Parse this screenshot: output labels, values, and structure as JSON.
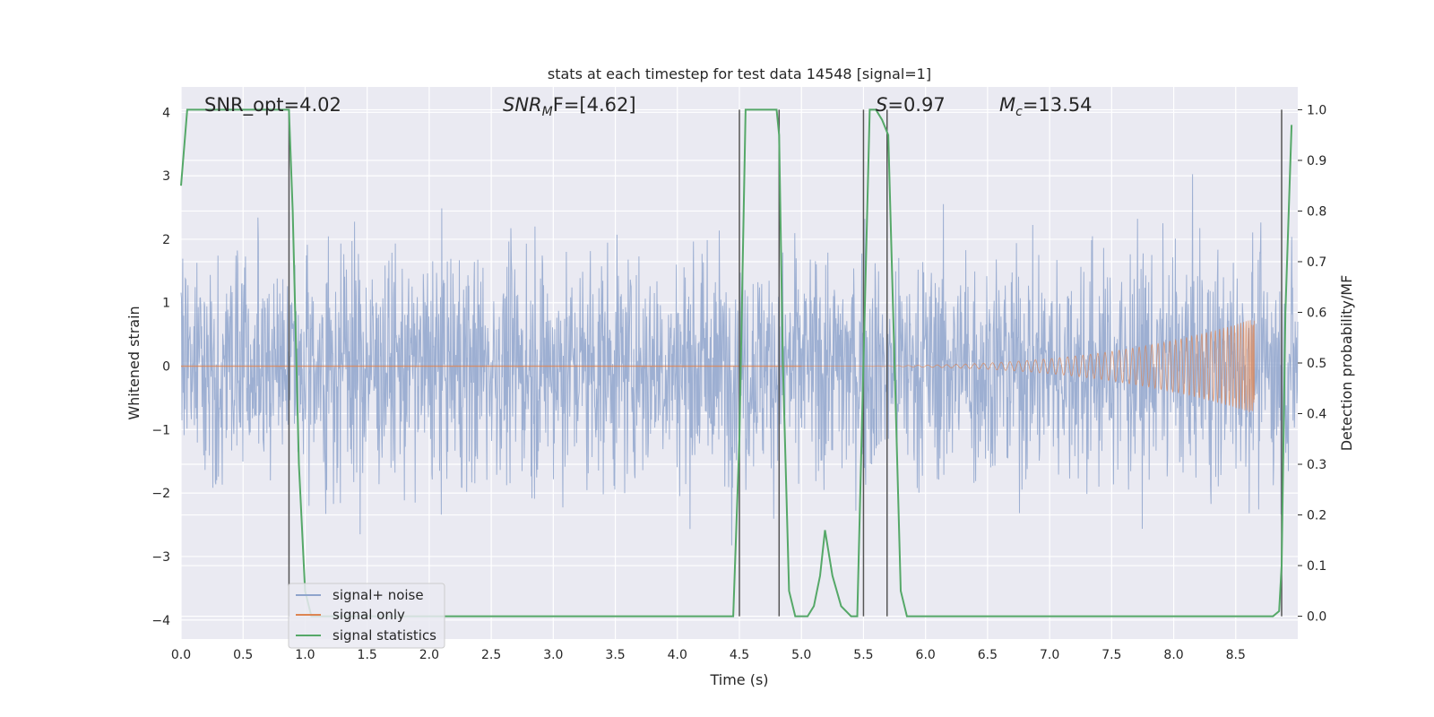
{
  "chart_data": {
    "type": "line",
    "title": "stats at each timestep for test data 14548 [signal=1]",
    "xlabel": "Time (s)",
    "ylabel": "Whitened strain",
    "y2label": "Detection probability/MF",
    "xlim": [
      0.0,
      9.0
    ],
    "ylim": [
      -4.3,
      4.4
    ],
    "y2lim": [
      -0.045,
      1.045
    ],
    "xticks": [
      "0.0",
      "0.5",
      "1.0",
      "1.5",
      "2.0",
      "2.5",
      "3.0",
      "3.5",
      "4.0",
      "4.5",
      "5.0",
      "5.5",
      "6.0",
      "6.5",
      "7.0",
      "7.5",
      "8.0",
      "8.5"
    ],
    "xtick_values": [
      0.0,
      0.5,
      1.0,
      1.5,
      2.0,
      2.5,
      3.0,
      3.5,
      4.0,
      4.5,
      5.0,
      5.5,
      6.0,
      6.5,
      7.0,
      7.5,
      8.0,
      8.5
    ],
    "yticks": [
      "4",
      "3",
      "2",
      "1",
      "0",
      "−1",
      "−2",
      "−3",
      "−4"
    ],
    "ytick_values": [
      4,
      3,
      2,
      1,
      0,
      -1,
      -2,
      -3,
      -4
    ],
    "y2ticks": [
      "1.0",
      "0.9",
      "0.8",
      "0.7",
      "0.6",
      "0.5",
      "0.4",
      "0.3",
      "0.2",
      "0.1",
      "0.0"
    ],
    "y2tick_values": [
      1.0,
      0.9,
      0.8,
      0.7,
      0.6,
      0.5,
      0.4,
      0.3,
      0.2,
      0.1,
      0.0
    ],
    "grid": true,
    "legend_position": "lower-left",
    "annotations": {
      "snr_opt": "SNR_opt=4.02",
      "snr_mf_italic": "SNR",
      "snr_mf_sub": "M",
      "snr_mf_rest": "F=[4.62]",
      "s_italic": "S",
      "s_rest": "=0.97",
      "mc_italic": "M",
      "mc_sub": "c",
      "mc_rest": "=13.54"
    },
    "series": [
      {
        "name": "signal+ noise",
        "color": "#8fa4cc",
        "description": "whitened noise dominated strain, roughly within ±2.5 with spikes to ±3.7",
        "envelope_abs": 3.7
      },
      {
        "name": "signal only",
        "color": "#dd8452",
        "description": "chirp signal growing in amplitude until merger",
        "chirp_start": 5.0,
        "chirp_end": 8.65,
        "max_amplitude": 0.75
      },
      {
        "name": "signal statistics",
        "color": "#55a868",
        "x": [
          0.0,
          0.05,
          0.1,
          0.2,
          0.5,
          0.8,
          0.87,
          0.9,
          0.95,
          1.0,
          1.05,
          1.5,
          2.0,
          3.0,
          4.0,
          4.45,
          4.5,
          4.55,
          4.8,
          4.82,
          4.85,
          4.9,
          4.95,
          5.05,
          5.1,
          5.15,
          5.19,
          5.25,
          5.32,
          5.4,
          5.45,
          5.5,
          5.55,
          5.6,
          5.65,
          5.7,
          5.75,
          5.8,
          5.85,
          6.0,
          7.0,
          8.0,
          8.8,
          8.85,
          8.87,
          8.9,
          8.95
        ],
        "y": [
          0.85,
          1.0,
          1.0,
          1.0,
          1.0,
          1.0,
          1.0,
          0.8,
          0.3,
          0.05,
          0.0,
          0.0,
          0.0,
          0.0,
          0.0,
          0.0,
          0.35,
          1.0,
          1.0,
          0.95,
          0.5,
          0.05,
          0.0,
          0.0,
          0.02,
          0.08,
          0.17,
          0.08,
          0.02,
          0.0,
          0.0,
          0.5,
          1.0,
          1.0,
          0.98,
          0.95,
          0.5,
          0.05,
          0.0,
          0.0,
          0.0,
          0.0,
          0.0,
          0.01,
          0.1,
          0.6,
          0.97
        ]
      }
    ],
    "vertical_lines_x": [
      0.87,
      4.5,
      4.82,
      5.5,
      5.69,
      8.87
    ]
  }
}
